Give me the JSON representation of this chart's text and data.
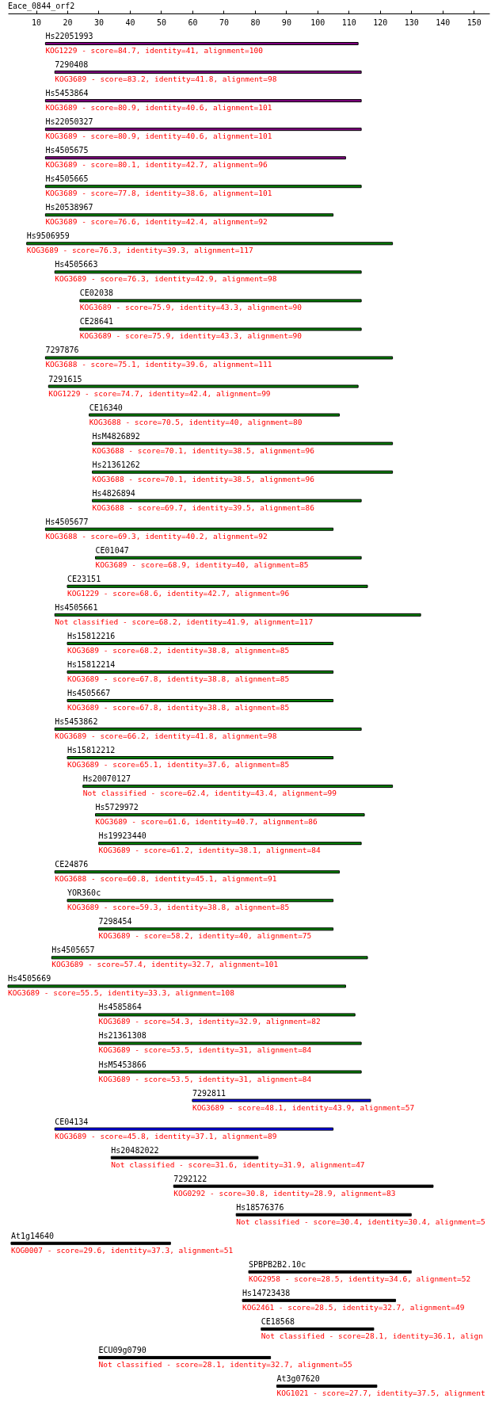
{
  "chart_data": {
    "type": "bar",
    "orientation": "horizontal",
    "title": "Eace_0844_orf2",
    "categories": [
      "Hs22051993",
      "7290408",
      "Hs5453864",
      "Hs22050327",
      "Hs4505675",
      "Hs4505665",
      "Hs20538967",
      "Hs9506959",
      "Hs4505663",
      "CE02038",
      "CE28641",
      "7297876",
      "7291615",
      "CE16340",
      "HsM4826892",
      "Hs21361262",
      "Hs4826894",
      "Hs4505677",
      "CE01047",
      "CE23151",
      "Hs4505661",
      "Hs15812216",
      "Hs15812214",
      "Hs4505667",
      "Hs5453862",
      "Hs15812212",
      "Hs20070127",
      "Hs5729972",
      "Hs19923440",
      "CE24876",
      "YOR360c",
      "7298454",
      "Hs4505657",
      "Hs4505669",
      "Hs4585864",
      "Hs21361308",
      "HsM5453866",
      "7292811",
      "CE04134",
      "Hs20482022",
      "7292122",
      "Hs18576376",
      "At1g14640",
      "SPBPB2B2.10c",
      "Hs14723438",
      "CE18568",
      "ECU09g0790",
      "At3g07620"
    ],
    "base": [
      13,
      16,
      13,
      13,
      13,
      13,
      13,
      7,
      16,
      24,
      24,
      13,
      14,
      27,
      28,
      28,
      28,
      13,
      29,
      20,
      16,
      20,
      20,
      20,
      16,
      20,
      25,
      29,
      30,
      16,
      20,
      30,
      15,
      1,
      30,
      30,
      30,
      60,
      16,
      34,
      54,
      74,
      2,
      78,
      76,
      82,
      30,
      87
    ],
    "values": [
      100,
      98,
      101,
      101,
      96,
      101,
      92,
      117,
      98,
      90,
      90,
      111,
      99,
      80,
      96,
      96,
      86,
      92,
      85,
      96,
      117,
      85,
      85,
      85,
      98,
      85,
      99,
      86,
      84,
      91,
      85,
      75,
      101,
      108,
      82,
      84,
      84,
      57,
      89,
      47,
      83,
      56,
      51,
      52,
      49,
      36,
      55,
      32
    ],
    "colors": [
      "#800080",
      "#800080",
      "#800080",
      "#800080",
      "#800080",
      "#008000",
      "#008000",
      "#008000",
      "#008000",
      "#008000",
      "#008000",
      "#008000",
      "#008000",
      "#008000",
      "#008000",
      "#008000",
      "#008000",
      "#008000",
      "#008000",
      "#008000",
      "#008000",
      "#008000",
      "#008000",
      "#008000",
      "#008000",
      "#008000",
      "#008000",
      "#008000",
      "#008000",
      "#008000",
      "#008000",
      "#008000",
      "#008000",
      "#008000",
      "#008000",
      "#008000",
      "#008000",
      "#0000ff",
      "#0000ff",
      "#000000",
      "#000000",
      "#000000",
      "#000000",
      "#000000",
      "#000000",
      "#000000",
      "#000000",
      "#000000"
    ],
    "xlim": [
      1,
      155
    ],
    "xticks": [
      10,
      20,
      30,
      40,
      50,
      60,
      70,
      80,
      90,
      100,
      110,
      120,
      130,
      140,
      150
    ],
    "annotations": [
      {
        "text": "KOG1229 - score=84.7, identity=41, alignment=100",
        "x": 13,
        "y": "Hs22051993"
      },
      {
        "text": "KOG3689 - score=83.2, identity=41.8, alignment=98",
        "x": 16,
        "y": "7290408"
      },
      {
        "text": "KOG3689 - score=80.9, identity=40.6, alignment=101",
        "x": 13,
        "y": "Hs5453864"
      },
      {
        "text": "KOG3689 - score=80.9, identity=40.6, alignment=101",
        "x": 13,
        "y": "Hs22050327"
      },
      {
        "text": "KOG3689 - score=80.1, identity=42.7, alignment=96",
        "x": 13,
        "y": "Hs4505675"
      },
      {
        "text": "KOG3689 - score=77.8, identity=38.6, alignment=101",
        "x": 13,
        "y": "Hs4505665"
      },
      {
        "text": "KOG3689 - score=76.6, identity=42.4, alignment=92",
        "x": 13,
        "y": "Hs20538967"
      },
      {
        "text": "KOG3689 - score=76.3, identity=39.3, alignment=117",
        "x": 7,
        "y": "Hs9506959"
      },
      {
        "text": "KOG3689 - score=76.3, identity=42.9, alignment=98",
        "x": 16,
        "y": "Hs4505663"
      },
      {
        "text": "KOG3689 - score=75.9, identity=43.3, alignment=90",
        "x": 24,
        "y": "CE02038"
      },
      {
        "text": "KOG3689 - score=75.9, identity=43.3, alignment=90",
        "x": 24,
        "y": "CE28641"
      },
      {
        "text": "KOG3688 - score=75.1, identity=39.6, alignment=111",
        "x": 13,
        "y": "7297876"
      },
      {
        "text": "KOG1229 - score=74.7, identity=42.4, alignment=99",
        "x": 14,
        "y": "7291615"
      },
      {
        "text": "KOG3688 - score=70.5, identity=40, alignment=80",
        "x": 27,
        "y": "CE16340"
      },
      {
        "text": "KOG3688 - score=70.1, identity=38.5, alignment=96",
        "x": 28,
        "y": "HsM4826892"
      },
      {
        "text": "KOG3688 - score=70.1, identity=38.5, alignment=96",
        "x": 28,
        "y": "Hs21361262"
      },
      {
        "text": "KOG3688 - score=69.7, identity=39.5, alignment=86",
        "x": 28,
        "y": "Hs4826894"
      },
      {
        "text": "KOG3688 - score=69.3, identity=40.2, alignment=92",
        "x": 13,
        "y": "Hs4505677"
      },
      {
        "text": "KOG3689 - score=68.9, identity=40, alignment=85",
        "x": 29,
        "y": "CE01047"
      },
      {
        "text": "KOG1229 - score=68.6, identity=42.7, alignment=96",
        "x": 20,
        "y": "CE23151"
      },
      {
        "text": "Not classified - score=68.2, identity=41.9, alignment=117",
        "x": 16,
        "y": "Hs4505661"
      },
      {
        "text": "KOG3689 - score=68.2, identity=38.8, alignment=85",
        "x": 20,
        "y": "Hs15812216"
      },
      {
        "text": "KOG3689 - score=67.8, identity=38.8, alignment=85",
        "x": 20,
        "y": "Hs15812214"
      },
      {
        "text": "KOG3689 - score=67.8, identity=38.8, alignment=85",
        "x": 20,
        "y": "Hs4505667"
      },
      {
        "text": "KOG3689 - score=66.2, identity=41.8, alignment=98",
        "x": 16,
        "y": "Hs5453862"
      },
      {
        "text": "KOG3689 - score=65.1, identity=37.6, alignment=85",
        "x": 20,
        "y": "Hs15812212"
      },
      {
        "text": "Not classified - score=62.4, identity=43.4, alignment=99",
        "x": 25,
        "y": "Hs20070127"
      },
      {
        "text": "KOG3689 - score=61.6, identity=40.7, alignment=86",
        "x": 29,
        "y": "Hs5729972"
      },
      {
        "text": "KOG3689 - score=61.2, identity=38.1, alignment=84",
        "x": 30,
        "y": "Hs19923440"
      },
      {
        "text": "KOG3688 - score=60.8, identity=45.1, alignment=91",
        "x": 16,
        "y": "CE24876"
      },
      {
        "text": "KOG3689 - score=59.3, identity=38.8, alignment=85",
        "x": 20,
        "y": "YOR360c"
      },
      {
        "text": "KOG3689 - score=58.2, identity=40, alignment=75",
        "x": 30,
        "y": "7298454"
      },
      {
        "text": "KOG3689 - score=57.4, identity=32.7, alignment=101",
        "x": 15,
        "y": "Hs4505657"
      },
      {
        "text": "KOG3689 - score=55.5, identity=33.3, alignment=108",
        "x": 1,
        "y": "Hs4505669"
      },
      {
        "text": "KOG3689 - score=54.3, identity=32.9, alignment=82",
        "x": 30,
        "y": "Hs4585864"
      },
      {
        "text": "KOG3689 - score=53.5, identity=31, alignment=84",
        "x": 30,
        "y": "Hs21361308"
      },
      {
        "text": "KOG3689 - score=53.5, identity=31, alignment=84",
        "x": 30,
        "y": "HsM5453866"
      },
      {
        "text": "KOG3689 - score=48.1, identity=43.9, alignment=57",
        "x": 60,
        "y": "7292811"
      },
      {
        "text": "KOG3689 - score=45.8, identity=37.1, alignment=89",
        "x": 16,
        "y": "CE04134"
      },
      {
        "text": "Not classified - score=31.6, identity=31.9, alignment=47",
        "x": 34,
        "y": "Hs20482022"
      },
      {
        "text": "KOG0292 - score=30.8, identity=28.9, alignment=83",
        "x": 54,
        "y": "7292122"
      },
      {
        "text": "Not classified - score=30.4, identity=30.4, alignment=5",
        "x": 74,
        "y": "Hs18576376"
      },
      {
        "text": "KOG0007 - score=29.6, identity=37.3, alignment=51",
        "x": 2,
        "y": "At1g14640"
      },
      {
        "text": "KOG2958 - score=28.5, identity=34.6, alignment=52",
        "x": 78,
        "y": "SPBPB2B2.10c"
      },
      {
        "text": "KOG2461 - score=28.5, identity=32.7, alignment=49",
        "x": 76,
        "y": "Hs14723438"
      },
      {
        "text": "Not classified - score=28.1, identity=36.1, align",
        "x": 82,
        "y": "CE18568"
      },
      {
        "text": "Not classified - score=28.1, identity=32.7, alignment=55",
        "x": 30,
        "y": "ECU09g0790"
      },
      {
        "text": "KOG1021 - score=27.7, identity=37.5, alignment",
        "x": 87,
        "y": "At3g07620"
      }
    ]
  }
}
